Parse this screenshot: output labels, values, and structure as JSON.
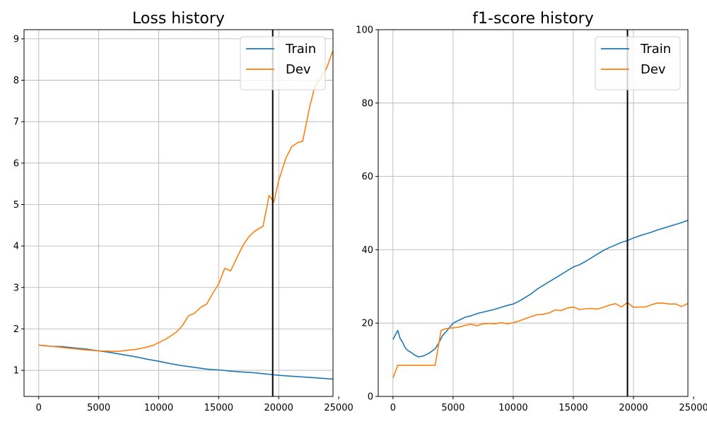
{
  "chart_data": [
    {
      "type": "line",
      "title": "Loss history",
      "xlim": [
        -1225,
        24525
      ],
      "ylim": [
        0.37,
        9.22
      ],
      "xticks": [
        0,
        5000,
        10000,
        15000,
        20000,
        25000
      ],
      "xtick_labels": [
        "0",
        "5000",
        "10000",
        "15000",
        "20000",
        "25000"
      ],
      "yticks": [
        1,
        2,
        3,
        4,
        5,
        6,
        7,
        8,
        9
      ],
      "ytick_labels": [
        "1",
        "2",
        "3",
        "4",
        "5",
        "6",
        "7",
        "8",
        "9"
      ],
      "grid": true,
      "legend_position": "upper right",
      "vline_x": 19500,
      "series": [
        {
          "name": "Train",
          "color": "#1f77b4",
          "x": [
            0,
            1000,
            2000,
            3000,
            4000,
            5000,
            6000,
            7000,
            8000,
            9000,
            10000,
            11000,
            12000,
            13000,
            14000,
            15000,
            16000,
            17000,
            18000,
            19000,
            20000,
            21000,
            22000,
            23000,
            24500
          ],
          "y": [
            1.61,
            1.58,
            1.57,
            1.54,
            1.51,
            1.47,
            1.43,
            1.38,
            1.33,
            1.27,
            1.22,
            1.16,
            1.11,
            1.07,
            1.03,
            1.01,
            0.98,
            0.96,
            0.94,
            0.91,
            0.88,
            0.86,
            0.84,
            0.82,
            0.79
          ]
        },
        {
          "name": "Dev",
          "color": "#ff7f0e",
          "x": [
            0,
            500,
            1000,
            2000,
            3000,
            4000,
            5000,
            6000,
            6700,
            7500,
            8000,
            8500,
            9000,
            9600,
            10000,
            10500,
            11000,
            11500,
            12000,
            12500,
            13000,
            13500,
            14000,
            14500,
            15000,
            15500,
            16000,
            16500,
            17000,
            17500,
            18000,
            18700,
            19200,
            19600,
            20000,
            20600,
            21100,
            21600,
            22000,
            22600,
            23000,
            23500,
            24000,
            24500
          ],
          "y": [
            1.61,
            1.59,
            1.58,
            1.55,
            1.52,
            1.49,
            1.47,
            1.46,
            1.46,
            1.49,
            1.5,
            1.53,
            1.56,
            1.61,
            1.67,
            1.74,
            1.83,
            1.93,
            2.09,
            2.32,
            2.38,
            2.52,
            2.6,
            2.86,
            3.09,
            3.46,
            3.4,
            3.71,
            4.0,
            4.22,
            4.36,
            4.48,
            5.22,
            5.06,
            5.58,
            6.12,
            6.4,
            6.5,
            6.53,
            7.38,
            7.83,
            8.05,
            8.3,
            8.7
          ]
        }
      ]
    },
    {
      "type": "line",
      "title": "f1-score history",
      "xlim": [
        -1225,
        24525
      ],
      "ylim": [
        0,
        100
      ],
      "xticks": [
        0,
        5000,
        10000,
        15000,
        20000,
        25000
      ],
      "xtick_labels": [
        "0",
        "5000",
        "10000",
        "15000",
        "20000",
        "25000"
      ],
      "yticks": [
        0,
        20,
        40,
        60,
        80,
        100
      ],
      "ytick_labels": [
        "0",
        "20",
        "40",
        "60",
        "80",
        "100"
      ],
      "grid": true,
      "legend_position": "upper right",
      "vline_x": 19500,
      "series": [
        {
          "name": "Train",
          "color": "#1f77b4",
          "x": [
            0,
            200,
            400,
            600,
            800,
            1000,
            1200,
            1500,
            1800,
            2100,
            2500,
            3000,
            3500,
            3800,
            4100,
            4500,
            4800,
            5000,
            5500,
            6000,
            6500,
            7000,
            7500,
            8000,
            8500,
            9000,
            9500,
            10000,
            10500,
            11000,
            11500,
            12000,
            12500,
            13000,
            13500,
            14000,
            14500,
            15000,
            15500,
            16000,
            16500,
            17000,
            17500,
            18000,
            18500,
            19000,
            19500,
            20000,
            20500,
            21000,
            21500,
            22000,
            22500,
            23000,
            23500,
            24000,
            24500
          ],
          "y": [
            15.5,
            16.8,
            18.0,
            15.8,
            14.8,
            13.4,
            12.6,
            12.0,
            11.3,
            10.8,
            11.0,
            11.8,
            13.0,
            14.5,
            16.5,
            18.0,
            19.2,
            20.0,
            20.8,
            21.6,
            22.0,
            22.6,
            23.0,
            23.4,
            23.8,
            24.3,
            24.8,
            25.2,
            26.0,
            27.0,
            28.0,
            29.3,
            30.3,
            31.3,
            32.3,
            33.3,
            34.3,
            35.3,
            35.9,
            36.8,
            37.8,
            38.8,
            39.8,
            40.6,
            41.3,
            42.0,
            42.5,
            43.2,
            43.8,
            44.3,
            44.8,
            45.4,
            45.9,
            46.4,
            46.9,
            47.4,
            48.0
          ]
        },
        {
          "name": "Dev",
          "color": "#ff7f0e",
          "x": [
            0,
            400,
            1000,
            2000,
            3000,
            3500,
            4000,
            4400,
            5000,
            5500,
            6000,
            6500,
            7000,
            7500,
            8000,
            8500,
            9000,
            9500,
            10000,
            10500,
            11000,
            11500,
            12000,
            12500,
            13000,
            13500,
            14000,
            14500,
            15000,
            15500,
            16000,
            16500,
            17000,
            17500,
            18000,
            18500,
            19000,
            19500,
            20000,
            20500,
            21000,
            21500,
            22000,
            22500,
            23000,
            23500,
            24000,
            24500
          ],
          "y": [
            5.0,
            8.5,
            8.5,
            8.5,
            8.5,
            8.5,
            18.0,
            18.5,
            18.7,
            18.9,
            19.4,
            19.7,
            19.3,
            19.8,
            19.9,
            19.8,
            20.1,
            19.8,
            20.1,
            20.6,
            21.2,
            21.8,
            22.3,
            22.4,
            22.8,
            23.6,
            23.4,
            24.1,
            24.4,
            23.7,
            23.9,
            24.0,
            23.8,
            24.3,
            24.9,
            25.3,
            24.4,
            25.6,
            24.3,
            24.4,
            24.4,
            25.0,
            25.5,
            25.4,
            25.2,
            25.2,
            24.5,
            25.3
          ]
        }
      ]
    }
  ]
}
